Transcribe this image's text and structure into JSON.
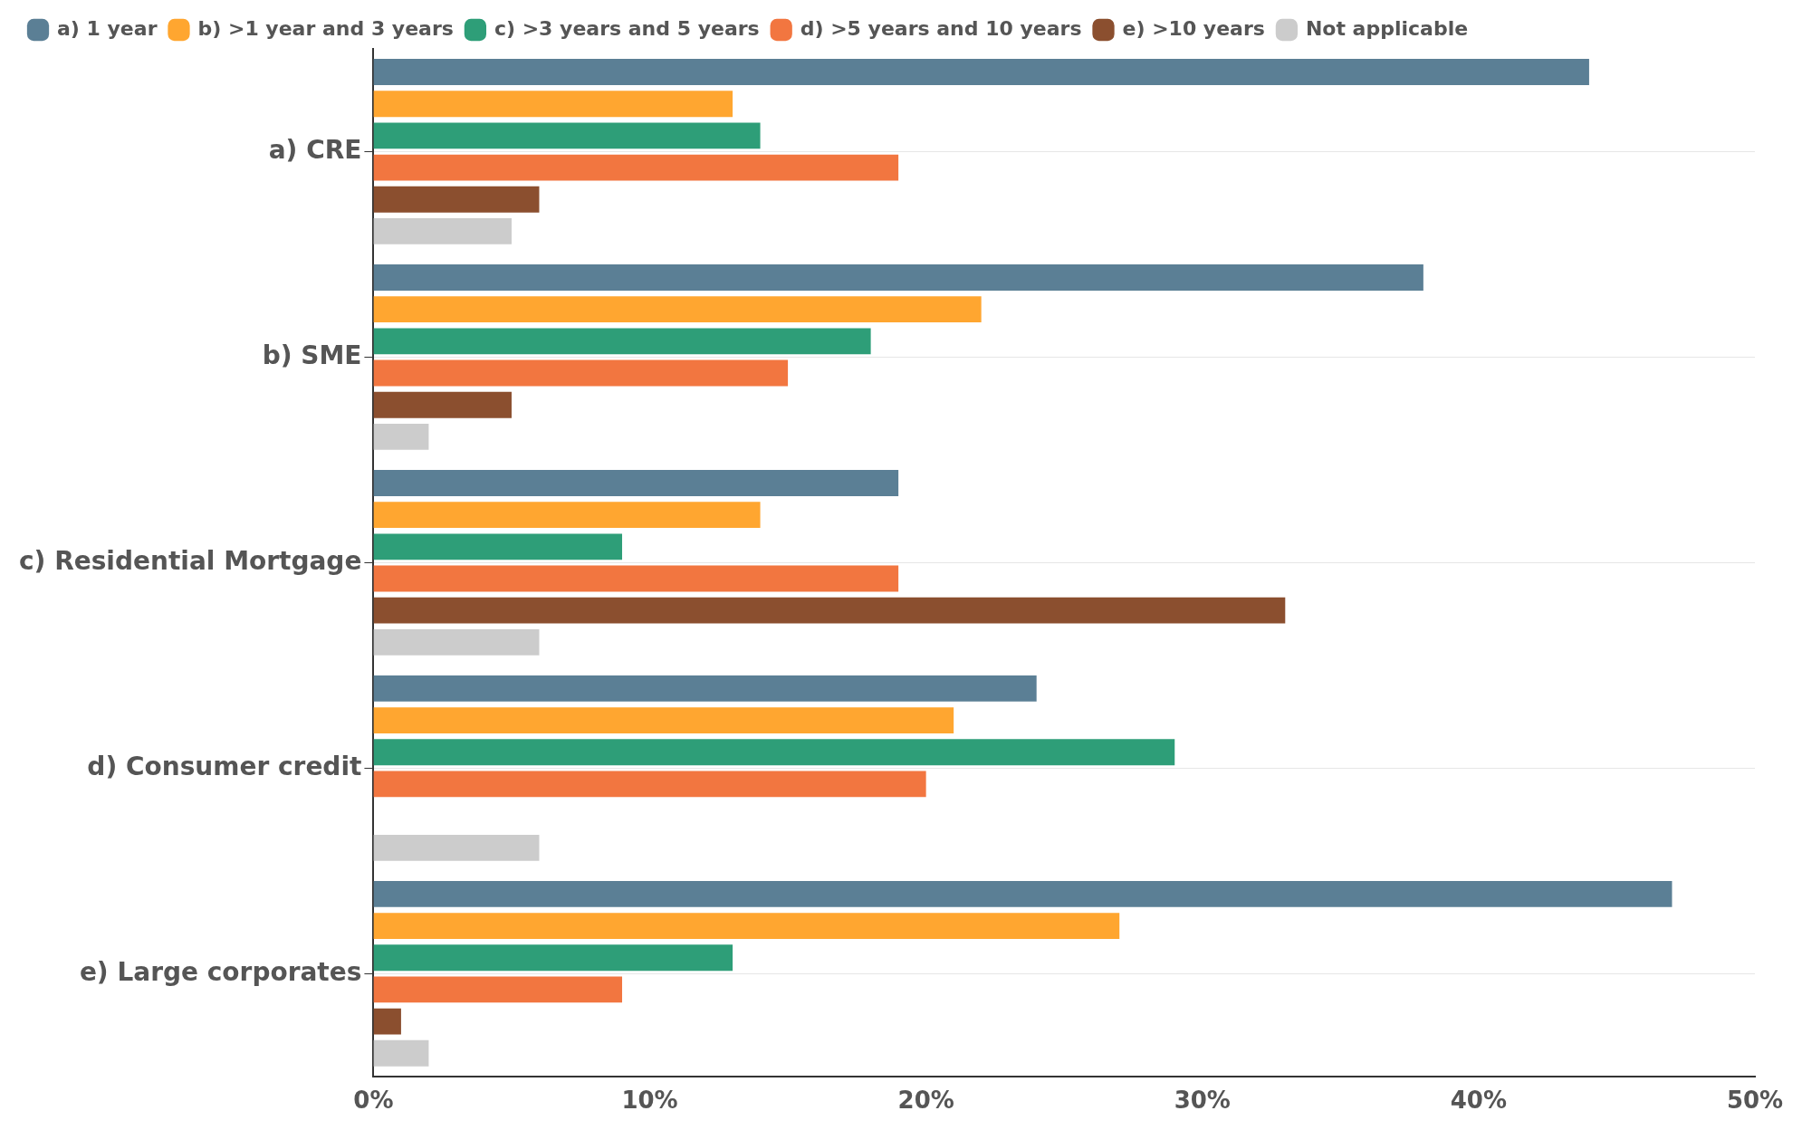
{
  "chart_data": {
    "type": "bar",
    "orientation": "horizontal",
    "categories": [
      "a) CRE",
      "b) SME",
      "c) Residential Mortgage",
      "d) Consumer credit",
      "e) Large corporates"
    ],
    "series": [
      {
        "name": "a) 1 year",
        "color": "#5b7f95",
        "values": [
          44,
          38,
          19,
          24,
          47
        ]
      },
      {
        "name": "b) >1 year and 3 years",
        "color": "#ffa630",
        "values": [
          13,
          22,
          14,
          21,
          27
        ]
      },
      {
        "name": "c) >3 years and 5 years",
        "color": "#2e9e78",
        "values": [
          14,
          18,
          9,
          29,
          13
        ]
      },
      {
        "name": "d) >5 years and 10 years",
        "color": "#f27640",
        "values": [
          19,
          15,
          19,
          20,
          9
        ]
      },
      {
        "name": "e) >10 years",
        "color": "#8b4f2f",
        "values": [
          6,
          5,
          33,
          0,
          1
        ]
      },
      {
        "name": "Not applicable",
        "color": "#cccccc",
        "values": [
          5,
          2,
          6,
          6,
          2
        ]
      }
    ],
    "xlim": [
      0,
      50
    ],
    "xticks": [
      {
        "value": 0,
        "label": "0%"
      },
      {
        "value": 10,
        "label": "10%"
      },
      {
        "value": 20,
        "label": "20%"
      },
      {
        "value": 30,
        "label": "30%"
      },
      {
        "value": 40,
        "label": "40%"
      },
      {
        "value": 50,
        "label": "50%"
      }
    ],
    "grid": "y",
    "legend": "top left"
  }
}
